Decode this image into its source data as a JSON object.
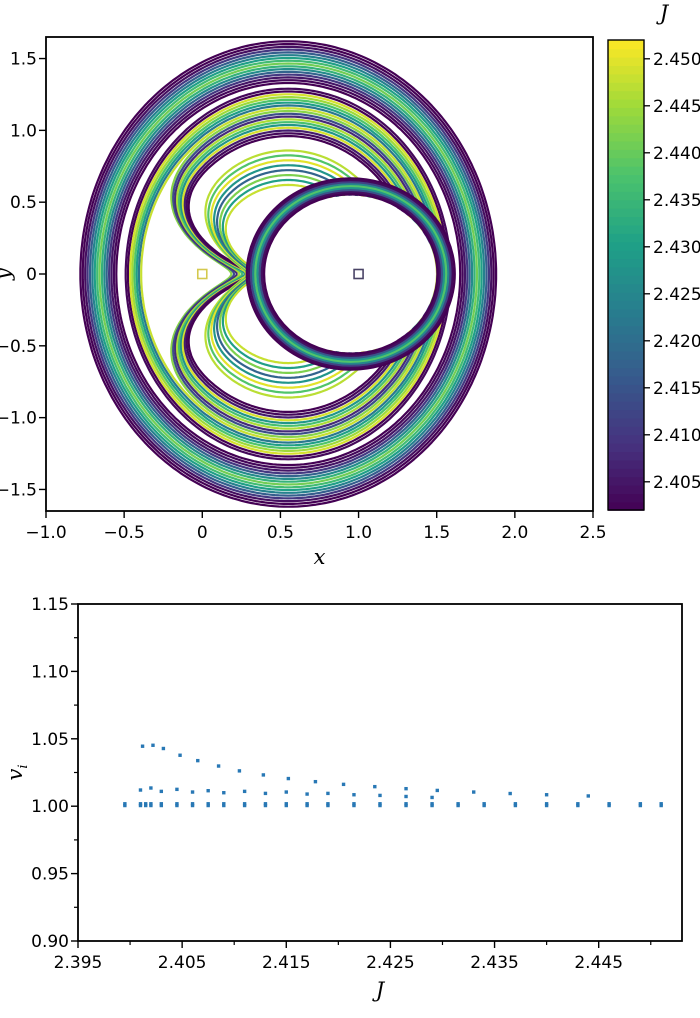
{
  "chart_data": [
    {
      "type": "line",
      "description": "Family of periodic orbits in the rotating frame, curves colored by Jacobi constant J; square markers at the two primaries",
      "xlabel": "x",
      "ylabel": "y",
      "xlim": [
        -1.0,
        2.5
      ],
      "ylim": [
        -1.65,
        1.65
      ],
      "xticks": {
        "values": [
          -1.0,
          -0.5,
          0,
          0.5,
          1.0,
          1.5,
          2.0,
          2.5
        ],
        "labels": [
          "−1.0",
          "−0.5",
          "0",
          "0.5",
          "1.0",
          "1.5",
          "2.0",
          "2.5"
        ]
      },
      "yticks": {
        "values": [
          -1.5,
          -1.0,
          -0.5,
          0,
          0.5,
          1.0,
          1.5
        ],
        "labels": [
          "−1.5",
          "−1.0",
          "−0.5",
          "0",
          "0.5",
          "1.0",
          "1.5"
        ]
      },
      "colorbar": {
        "label": "J",
        "min": 2.402,
        "max": 2.452,
        "ticks": [
          2.405,
          2.41,
          2.415,
          2.42,
          2.425,
          2.43,
          2.435,
          2.44,
          2.445,
          2.45
        ],
        "tick_labels": [
          "2.405",
          "2.410",
          "2.415",
          "2.420",
          "2.425",
          "2.430",
          "2.435",
          "2.440",
          "2.445",
          "2.450"
        ]
      },
      "markers": [
        {
          "name": "primary",
          "x": 0,
          "y": 0,
          "color": "#d4c94e"
        },
        {
          "name": "secondary",
          "x": 1,
          "y": 0,
          "color": "#4a4466"
        }
      ],
      "orbit_families": {
        "center": [
          0.55,
          0
        ],
        "hole": {
          "center": [
            0.95,
            0
          ],
          "r": 0.545
        },
        "bands": [
          {
            "name": "outer",
            "shape": "loop",
            "count": 16,
            "rx": [
              1.33,
              1.1
            ],
            "ry": [
              1.62,
              1.33
            ],
            "J": [
              2.402,
              2.402,
              2.404,
              2.41,
              2.417,
              2.424,
              2.43,
              2.436,
              2.441,
              2.434,
              2.426,
              2.418,
              2.41,
              2.405,
              2.403,
              2.402
            ]
          },
          {
            "name": "middle",
            "shape": "loop",
            "count": 18,
            "rx": [
              1.04,
              0.8
            ],
            "ry": [
              1.29,
              0.96
            ],
            "notch_from": 0.45,
            "xdip": [
              0.18,
              0.34
            ],
            "notch_w": 0.25,
            "J": [
              2.403,
              2.402,
              2.449,
              2.445,
              2.438,
              2.43,
              2.422,
              2.448,
              2.443,
              2.414,
              2.408,
              2.446,
              2.437,
              2.428,
              2.449,
              2.406,
              2.403,
              2.402
            ]
          },
          {
            "name": "inner",
            "shape": "loop",
            "count": 8,
            "rx": [
              0.7,
              0.53
            ],
            "ry": [
              0.86,
              0.62
            ],
            "notch_from": 0.0,
            "xdip": [
              0.28,
              0.36
            ],
            "notch_w": 0.3,
            "J": [
              2.447,
              2.438,
              2.45,
              2.428,
              2.418,
              2.442,
              2.43,
              2.448
            ]
          },
          {
            "name": "ring",
            "shape": "circle",
            "center": [
              0.95,
              0
            ],
            "count": 9,
            "r": [
              0.665,
              0.555
            ],
            "J": [
              2.402,
              2.403,
              2.412,
              2.425,
              2.438,
              2.428,
              2.415,
              2.404,
              2.402
            ]
          }
        ]
      }
    },
    {
      "type": "scatter",
      "description": "Stability index v_i of the orbit family versus Jacobi constant J",
      "xlabel": "J",
      "ylabel": {
        "main": "v",
        "sub": "i"
      },
      "xlim": [
        2.395,
        2.453
      ],
      "ylim": [
        0.9,
        1.15
      ],
      "xticks": {
        "values": [
          2.395,
          2.405,
          2.415,
          2.425,
          2.435,
          2.445
        ],
        "labels": [
          "2.395",
          "2.405",
          "2.415",
          "2.425",
          "2.435",
          "2.445"
        ],
        "minor": [
          2.4,
          2.41,
          2.42,
          2.43,
          2.44,
          2.45
        ]
      },
      "yticks": {
        "values": [
          0.9,
          0.95,
          1.0,
          1.05,
          1.1,
          1.15
        ],
        "labels": [
          "0.90",
          "0.95",
          "1.00",
          "1.05",
          "1.10",
          "1.15"
        ],
        "minor": [
          0.925,
          0.975,
          1.025,
          1.075,
          1.125
        ]
      },
      "point_color": "#2878b5",
      "points": [
        [
          2.3995,
          1.0005
        ],
        [
          2.3995,
          1.0018
        ],
        [
          2.401,
          1.0005
        ],
        [
          2.401,
          1.0018
        ],
        [
          2.4015,
          1.0005
        ],
        [
          2.4015,
          1.0018
        ],
        [
          2.402,
          1.0005
        ],
        [
          2.402,
          1.0018
        ],
        [
          2.403,
          1.0005
        ],
        [
          2.403,
          1.0018
        ],
        [
          2.4045,
          1.0005
        ],
        [
          2.4045,
          1.0018
        ],
        [
          2.406,
          1.0005
        ],
        [
          2.406,
          1.0018
        ],
        [
          2.4075,
          1.0005
        ],
        [
          2.4075,
          1.0018
        ],
        [
          2.409,
          1.0005
        ],
        [
          2.409,
          1.0018
        ],
        [
          2.411,
          1.0005
        ],
        [
          2.411,
          1.0018
        ],
        [
          2.413,
          1.0005
        ],
        [
          2.413,
          1.0018
        ],
        [
          2.415,
          1.0005
        ],
        [
          2.415,
          1.0018
        ],
        [
          2.417,
          1.0005
        ],
        [
          2.417,
          1.0018
        ],
        [
          2.419,
          1.0005
        ],
        [
          2.419,
          1.0018
        ],
        [
          2.4215,
          1.0005
        ],
        [
          2.4215,
          1.0018
        ],
        [
          2.424,
          1.0005
        ],
        [
          2.424,
          1.0018
        ],
        [
          2.4265,
          1.0005
        ],
        [
          2.4265,
          1.0018
        ],
        [
          2.429,
          1.0005
        ],
        [
          2.429,
          1.0018
        ],
        [
          2.4315,
          1.0005
        ],
        [
          2.4315,
          1.0018
        ],
        [
          2.434,
          1.0005
        ],
        [
          2.434,
          1.0018
        ],
        [
          2.437,
          1.0005
        ],
        [
          2.437,
          1.0018
        ],
        [
          2.44,
          1.0005
        ],
        [
          2.44,
          1.0018
        ],
        [
          2.443,
          1.0005
        ],
        [
          2.443,
          1.0018
        ],
        [
          2.446,
          1.0005
        ],
        [
          2.446,
          1.0018
        ],
        [
          2.449,
          1.0005
        ],
        [
          2.449,
          1.0018
        ],
        [
          2.451,
          1.0005
        ],
        [
          2.451,
          1.0018
        ],
        [
          2.401,
          1.012
        ],
        [
          2.402,
          1.0135
        ],
        [
          2.403,
          1.011
        ],
        [
          2.4045,
          1.0125
        ],
        [
          2.406,
          1.0105
        ],
        [
          2.4075,
          1.0115
        ],
        [
          2.409,
          1.01
        ],
        [
          2.411,
          1.011
        ],
        [
          2.413,
          1.0095
        ],
        [
          2.415,
          1.0105
        ],
        [
          2.417,
          1.009
        ],
        [
          2.419,
          1.0095
        ],
        [
          2.4215,
          1.0085
        ],
        [
          2.424,
          1.008
        ],
        [
          2.4265,
          1.0072
        ],
        [
          2.429,
          1.0065
        ],
        [
          2.4012,
          1.0445
        ],
        [
          2.4022,
          1.0452
        ],
        [
          2.4032,
          1.0428
        ],
        [
          2.4048,
          1.0378
        ],
        [
          2.4065,
          1.0338
        ],
        [
          2.4085,
          1.0298
        ],
        [
          2.4105,
          1.0262
        ],
        [
          2.4128,
          1.0232
        ],
        [
          2.4152,
          1.0205
        ],
        [
          2.4178,
          1.0182
        ],
        [
          2.4205,
          1.0162
        ],
        [
          2.4235,
          1.0145
        ],
        [
          2.4265,
          1.013
        ],
        [
          2.4295,
          1.0117
        ],
        [
          2.433,
          1.0105
        ],
        [
          2.4365,
          1.0094
        ],
        [
          2.44,
          1.0085
        ],
        [
          2.444,
          1.0076
        ]
      ]
    }
  ]
}
